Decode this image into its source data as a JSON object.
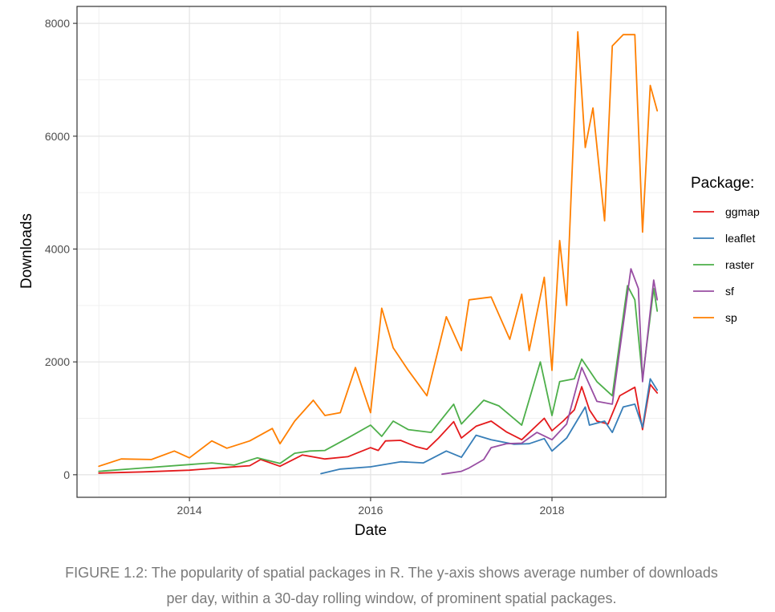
{
  "chart_data": {
    "type": "line",
    "xlabel": "Date",
    "ylabel": "Downloads",
    "xlim": [
      "2012-10-05",
      "2019-04-05"
    ],
    "ylim": [
      -400,
      8300
    ],
    "x_ticks": [
      "2014-01-01",
      "2016-01-01",
      "2018-01-01"
    ],
    "x_tick_labels": [
      "2014",
      "2016",
      "2018"
    ],
    "y_ticks": [
      0,
      2000,
      4000,
      6000,
      8000
    ],
    "y_tick_labels": [
      "0",
      "2000",
      "4000",
      "6000",
      "8000"
    ],
    "grid": true,
    "legend": {
      "title": "Package:",
      "position": "right"
    },
    "series": [
      {
        "name": "ggmap",
        "color": "#e41a1c",
        "points": [
          [
            "2013-01-01",
            30
          ],
          [
            "2013-07-01",
            50
          ],
          [
            "2014-01-01",
            80
          ],
          [
            "2014-06-01",
            130
          ],
          [
            "2014-09-01",
            160
          ],
          [
            "2014-10-15",
            270
          ],
          [
            "2015-01-01",
            150
          ],
          [
            "2015-04-01",
            350
          ],
          [
            "2015-07-01",
            280
          ],
          [
            "2015-10-01",
            320
          ],
          [
            "2016-01-01",
            480
          ],
          [
            "2016-02-01",
            430
          ],
          [
            "2016-03-01",
            600
          ],
          [
            "2016-05-01",
            610
          ],
          [
            "2016-07-01",
            500
          ],
          [
            "2016-08-15",
            450
          ],
          [
            "2016-10-01",
            650
          ],
          [
            "2016-12-01",
            940
          ],
          [
            "2017-01-01",
            650
          ],
          [
            "2017-03-01",
            860
          ],
          [
            "2017-05-01",
            950
          ],
          [
            "2017-07-01",
            760
          ],
          [
            "2017-09-01",
            620
          ],
          [
            "2017-12-01",
            1000
          ],
          [
            "2018-01-01",
            780
          ],
          [
            "2018-02-15",
            950
          ],
          [
            "2018-04-01",
            1150
          ],
          [
            "2018-05-01",
            1560
          ],
          [
            "2018-06-01",
            1150
          ],
          [
            "2018-07-01",
            950
          ],
          [
            "2018-08-15",
            900
          ],
          [
            "2018-10-01",
            1400
          ],
          [
            "2018-12-01",
            1550
          ],
          [
            "2019-01-01",
            800
          ],
          [
            "2019-02-01",
            1600
          ],
          [
            "2019-03-01",
            1450
          ]
        ]
      },
      {
        "name": "leaflet",
        "color": "#377eb8",
        "points": [
          [
            "2015-06-15",
            20
          ],
          [
            "2015-09-01",
            100
          ],
          [
            "2016-01-01",
            140
          ],
          [
            "2016-05-01",
            230
          ],
          [
            "2016-08-01",
            210
          ],
          [
            "2016-11-01",
            420
          ],
          [
            "2017-01-01",
            310
          ],
          [
            "2017-03-01",
            700
          ],
          [
            "2017-05-01",
            620
          ],
          [
            "2017-08-01",
            540
          ],
          [
            "2017-10-01",
            550
          ],
          [
            "2017-12-01",
            640
          ],
          [
            "2018-01-01",
            420
          ],
          [
            "2018-03-01",
            650
          ],
          [
            "2018-04-15",
            980
          ],
          [
            "2018-05-15",
            1200
          ],
          [
            "2018-06-01",
            880
          ],
          [
            "2018-08-01",
            950
          ],
          [
            "2018-09-01",
            750
          ],
          [
            "2018-10-15",
            1200
          ],
          [
            "2018-12-01",
            1250
          ],
          [
            "2019-01-01",
            840
          ],
          [
            "2019-02-01",
            1700
          ],
          [
            "2019-03-01",
            1500
          ]
        ]
      },
      {
        "name": "raster",
        "color": "#4daf4a",
        "points": [
          [
            "2013-01-01",
            60
          ],
          [
            "2013-07-01",
            120
          ],
          [
            "2014-01-01",
            180
          ],
          [
            "2014-04-01",
            210
          ],
          [
            "2014-07-01",
            170
          ],
          [
            "2014-10-01",
            300
          ],
          [
            "2015-01-01",
            200
          ],
          [
            "2015-03-01",
            380
          ],
          [
            "2015-05-01",
            420
          ],
          [
            "2015-07-01",
            430
          ],
          [
            "2015-10-01",
            650
          ],
          [
            "2016-01-01",
            880
          ],
          [
            "2016-02-15",
            680
          ],
          [
            "2016-04-01",
            950
          ],
          [
            "2016-06-01",
            800
          ],
          [
            "2016-09-01",
            750
          ],
          [
            "2016-12-01",
            1250
          ],
          [
            "2017-01-01",
            900
          ],
          [
            "2017-04-01",
            1320
          ],
          [
            "2017-06-01",
            1220
          ],
          [
            "2017-09-01",
            880
          ],
          [
            "2017-11-15",
            2000
          ],
          [
            "2018-01-01",
            1050
          ],
          [
            "2018-02-01",
            1650
          ],
          [
            "2018-04-01",
            1700
          ],
          [
            "2018-05-01",
            2050
          ],
          [
            "2018-07-01",
            1650
          ],
          [
            "2018-09-01",
            1400
          ],
          [
            "2018-11-01",
            3350
          ],
          [
            "2018-12-01",
            3100
          ],
          [
            "2019-01-01",
            1700
          ],
          [
            "2019-02-15",
            3300
          ],
          [
            "2019-03-01",
            2900
          ]
        ]
      },
      {
        "name": "sf",
        "color": "#984ea3",
        "points": [
          [
            "2016-10-15",
            10
          ],
          [
            "2017-01-01",
            60
          ],
          [
            "2017-02-01",
            120
          ],
          [
            "2017-04-01",
            270
          ],
          [
            "2017-05-01",
            480
          ],
          [
            "2017-07-01",
            550
          ],
          [
            "2017-09-01",
            560
          ],
          [
            "2017-11-01",
            750
          ],
          [
            "2018-01-01",
            620
          ],
          [
            "2018-03-01",
            900
          ],
          [
            "2018-05-01",
            1900
          ],
          [
            "2018-07-01",
            1300
          ],
          [
            "2018-09-01",
            1250
          ],
          [
            "2018-11-15",
            3650
          ],
          [
            "2018-12-15",
            3300
          ],
          [
            "2019-01-01",
            1650
          ],
          [
            "2019-02-15",
            3450
          ],
          [
            "2019-03-01",
            3100
          ]
        ]
      },
      {
        "name": "sp",
        "color": "#ff7f00",
        "points": [
          [
            "2013-01-01",
            150
          ],
          [
            "2013-04-01",
            280
          ],
          [
            "2013-08-01",
            270
          ],
          [
            "2013-11-01",
            420
          ],
          [
            "2014-01-01",
            300
          ],
          [
            "2014-04-01",
            600
          ],
          [
            "2014-06-01",
            470
          ],
          [
            "2014-09-01",
            600
          ],
          [
            "2014-12-01",
            820
          ],
          [
            "2015-01-01",
            550
          ],
          [
            "2015-03-01",
            950
          ],
          [
            "2015-05-15",
            1320
          ],
          [
            "2015-07-01",
            1050
          ],
          [
            "2015-09-01",
            1100
          ],
          [
            "2015-11-01",
            1900
          ],
          [
            "2016-01-01",
            1100
          ],
          [
            "2016-02-15",
            2950
          ],
          [
            "2016-04-01",
            2250
          ],
          [
            "2016-06-01",
            1850
          ],
          [
            "2016-08-15",
            1400
          ],
          [
            "2016-11-01",
            2800
          ],
          [
            "2017-01-01",
            2200
          ],
          [
            "2017-02-01",
            3100
          ],
          [
            "2017-05-01",
            3150
          ],
          [
            "2017-07-15",
            2400
          ],
          [
            "2017-09-01",
            3200
          ],
          [
            "2017-10-01",
            2200
          ],
          [
            "2017-12-01",
            3500
          ],
          [
            "2018-01-01",
            1850
          ],
          [
            "2018-02-01",
            4150
          ],
          [
            "2018-03-01",
            3000
          ],
          [
            "2018-04-15",
            7850
          ],
          [
            "2018-05-15",
            5800
          ],
          [
            "2018-06-15",
            6500
          ],
          [
            "2018-08-01",
            4500
          ],
          [
            "2018-09-01",
            7600
          ],
          [
            "2018-10-15",
            7800
          ],
          [
            "2018-12-01",
            7800
          ],
          [
            "2019-01-01",
            4300
          ],
          [
            "2019-02-01",
            6900
          ],
          [
            "2019-03-01",
            6450
          ]
        ]
      }
    ]
  },
  "caption": {
    "line1": "FIGURE 1.2: The popularity of spatial packages in R. The y-axis shows average number of downloads",
    "line2": "per day, within a 30-day rolling window, of prominent spatial packages."
  }
}
